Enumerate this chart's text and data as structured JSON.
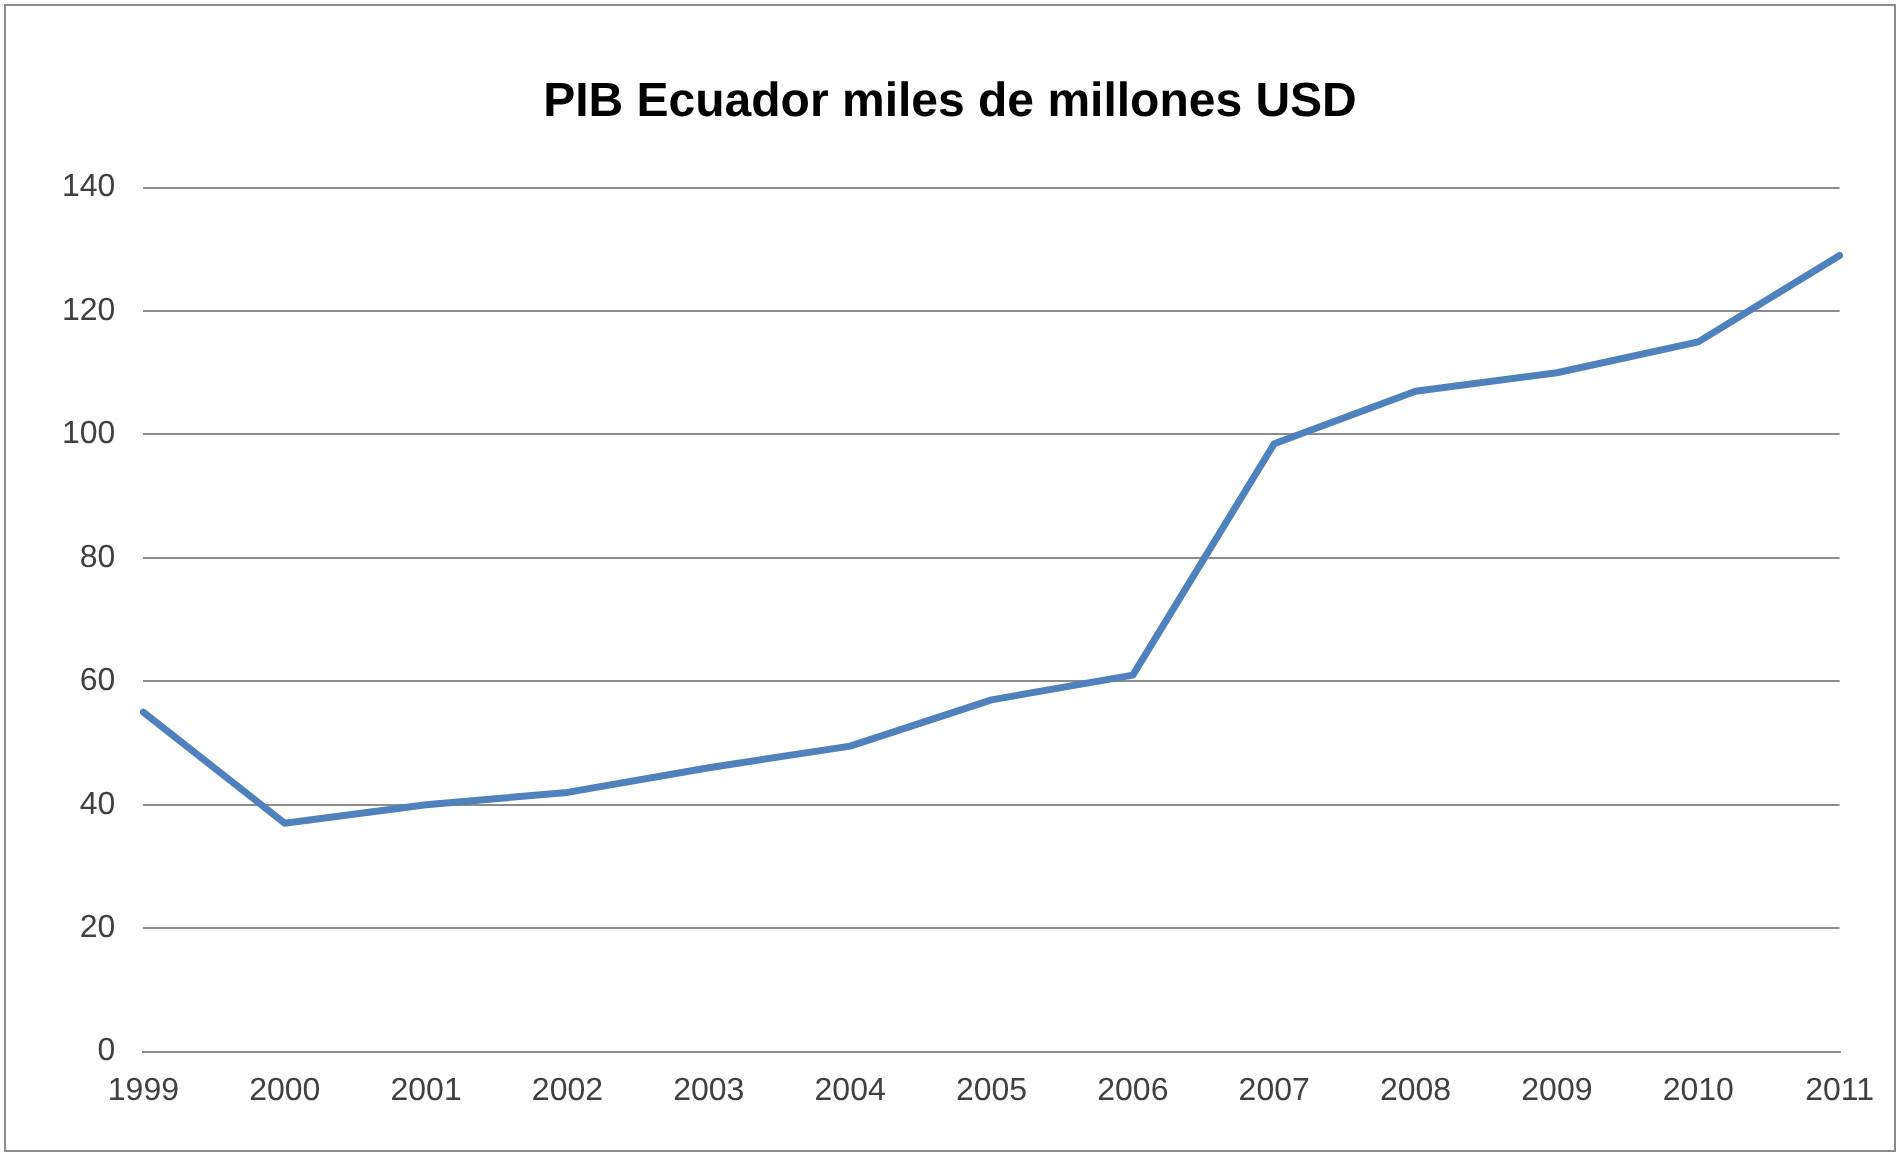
{
  "chart_data": {
    "type": "line",
    "title": "PIB Ecuador miles de millones USD",
    "categories": [
      "1999",
      "2000",
      "2001",
      "2002",
      "2003",
      "2004",
      "2005",
      "2006",
      "2007",
      "2008",
      "2009",
      "2010",
      "2011"
    ],
    "series": [
      {
        "color": "#4f81bd",
        "values": [
          55,
          37,
          40,
          42,
          46,
          49.5,
          57,
          61,
          98.5,
          107,
          110,
          115,
          129
        ]
      }
    ],
    "ylim": [
      0,
      140
    ],
    "yticks": [
      0,
      20,
      40,
      60,
      80,
      100,
      120,
      140
    ],
    "grid": "y",
    "legend": false,
    "marker": "none",
    "line_style": "solid"
  }
}
